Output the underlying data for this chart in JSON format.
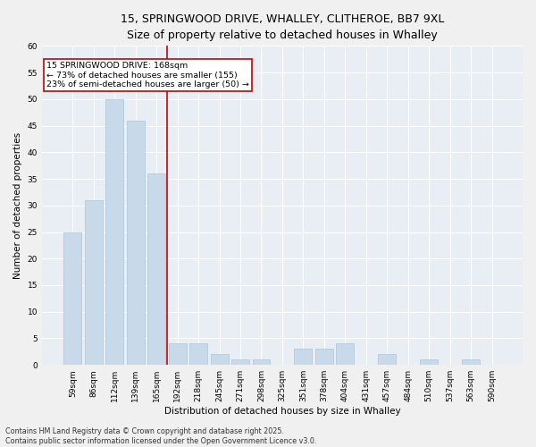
{
  "title1": "15, SPRINGWOOD DRIVE, WHALLEY, CLITHEROE, BB7 9XL",
  "title2": "Size of property relative to detached houses in Whalley",
  "xlabel": "Distribution of detached houses by size in Whalley",
  "ylabel": "Number of detached properties",
  "categories": [
    "59sqm",
    "86sqm",
    "112sqm",
    "139sqm",
    "165sqm",
    "192sqm",
    "218sqm",
    "245sqm",
    "271sqm",
    "298sqm",
    "325sqm",
    "351sqm",
    "378sqm",
    "404sqm",
    "431sqm",
    "457sqm",
    "484sqm",
    "510sqm",
    "537sqm",
    "563sqm",
    "590sqm"
  ],
  "values": [
    25,
    31,
    50,
    46,
    36,
    4,
    4,
    2,
    1,
    1,
    0,
    3,
    3,
    4,
    0,
    2,
    0,
    1,
    0,
    1,
    0
  ],
  "bar_color": "#c8d9ea",
  "bar_edge_color": "#adc4db",
  "bar_linewidth": 0.5,
  "property_line_index": 4,
  "annotation_line1": "15 SPRINGWOOD DRIVE: 168sqm",
  "annotation_line2": "← 73% of detached houses are smaller (155)",
  "annotation_line3": "23% of semi-detached houses are larger (50) →",
  "red_line_color": "#cc0000",
  "annotation_box_edgecolor": "#cc0000",
  "background_color": "#e8eef4",
  "grid_color": "#ffffff",
  "ylim": [
    0,
    60
  ],
  "yticks": [
    0,
    5,
    10,
    15,
    20,
    25,
    30,
    35,
    40,
    45,
    50,
    55,
    60
  ],
  "footnote": "Contains HM Land Registry data © Crown copyright and database right 2025.\nContains public sector information licensed under the Open Government Licence v3.0.",
  "title_fontsize": 9,
  "subtitle_fontsize": 8,
  "axis_label_fontsize": 7.5,
  "tick_fontsize": 6.5,
  "annotation_fontsize": 6.8,
  "footnote_fontsize": 5.8
}
